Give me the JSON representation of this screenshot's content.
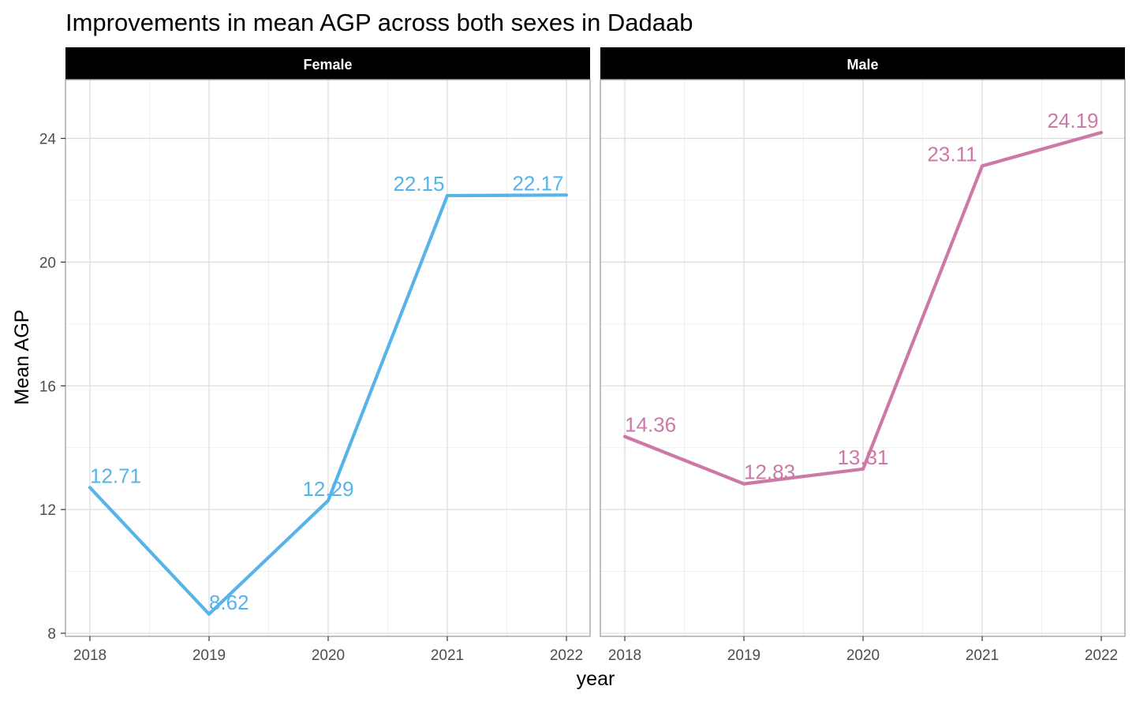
{
  "chart_data": {
    "type": "line",
    "title": "Improvements in mean AGP across both sexes in Dadaab",
    "xlabel": "year",
    "ylabel": "Mean AGP",
    "x": [
      2018,
      2019,
      2020,
      2021,
      2022
    ],
    "x_tick_labels": [
      "2018",
      "2019",
      "2020",
      "2021",
      "2022"
    ],
    "ylim": [
      7.9,
      25.9
    ],
    "y_ticks": [
      8,
      12,
      16,
      20,
      24
    ],
    "y_tick_labels": [
      "8",
      "12",
      "16",
      "20",
      "24"
    ],
    "grid": true,
    "legend": "none",
    "facets": [
      {
        "name": "Female",
        "color": "#56B4E9",
        "values": [
          12.71,
          8.62,
          12.29,
          22.15,
          22.17
        ],
        "labels": [
          "12.71",
          "8.62",
          "12.29",
          "22.15",
          "22.17"
        ]
      },
      {
        "name": "Male",
        "color": "#CC79A7",
        "values": [
          14.36,
          12.83,
          13.31,
          23.11,
          24.19
        ],
        "labels": [
          "14.36",
          "12.83",
          "13.31",
          "23.11",
          "24.19"
        ]
      }
    ]
  }
}
